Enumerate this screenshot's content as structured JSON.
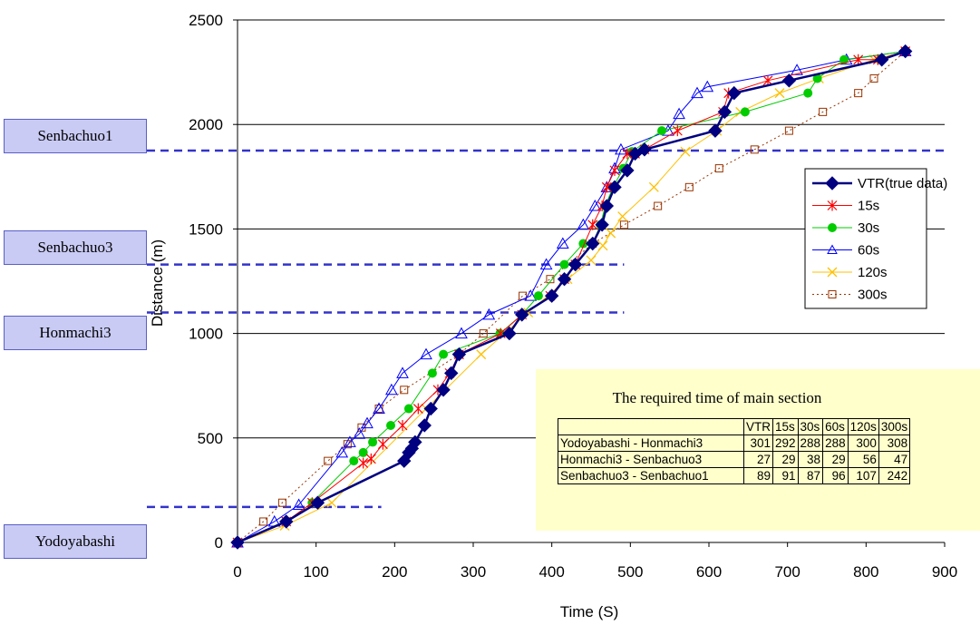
{
  "chart_data": {
    "type": "line",
    "title": "",
    "xlabel": "Time (S)",
    "ylabel": "Distance (m)",
    "xlim": [
      0,
      900
    ],
    "ylim": [
      0,
      2500
    ],
    "xticks": [
      0,
      100,
      200,
      300,
      400,
      500,
      600,
      700,
      800,
      900
    ],
    "yticks": [
      0,
      500,
      1000,
      1500,
      2000,
      2500
    ],
    "grid": "horizontal",
    "legend_position": "right",
    "series": [
      {
        "name": "VTR(true data)",
        "color": "#000080",
        "marker": "diamond",
        "dash": "solid",
        "x": [
          0,
          62,
          102,
          212,
          218,
          222,
          226,
          238,
          246,
          262,
          272,
          282,
          346,
          362,
          400,
          416,
          430,
          452,
          464,
          470,
          480,
          496,
          506,
          518,
          608,
          620,
          632,
          702,
          820,
          850
        ],
        "y": [
          0,
          100,
          190,
          390,
          430,
          450,
          480,
          560,
          640,
          730,
          810,
          900,
          1000,
          1090,
          1180,
          1260,
          1330,
          1430,
          1520,
          1610,
          1700,
          1780,
          1860,
          1880,
          1970,
          2060,
          2150,
          2210,
          2310,
          2350
        ]
      },
      {
        "name": "15s",
        "color": "#ff0000",
        "marker": "star",
        "dash": "solid",
        "x": [
          0,
          62,
          95,
          160,
          170,
          185,
          210,
          230,
          255,
          270,
          282,
          335,
          362,
          398,
          416,
          430,
          452,
          464,
          470,
          480,
          496,
          506,
          518,
          560,
          618,
          625,
          675,
          790,
          815,
          850
        ],
        "y": [
          0,
          100,
          190,
          380,
          400,
          470,
          560,
          640,
          730,
          810,
          900,
          1000,
          1090,
          1180,
          1260,
          1330,
          1520,
          1610,
          1700,
          1780,
          1860,
          1860,
          1880,
          1970,
          2060,
          2150,
          2210,
          2310,
          2310,
          2350
        ]
      },
      {
        "name": "30s",
        "color": "#00cc00",
        "marker": "circle",
        "dash": "solid",
        "x": [
          0,
          62,
          95,
          148,
          160,
          172,
          195,
          218,
          248,
          262,
          334,
          362,
          383,
          416,
          440,
          452,
          462,
          468,
          478,
          491,
          502,
          540,
          646,
          726,
          738,
          772,
          850
        ],
        "y": [
          0,
          100,
          190,
          390,
          430,
          480,
          560,
          640,
          810,
          900,
          1000,
          1090,
          1180,
          1330,
          1430,
          1430,
          1520,
          1610,
          1700,
          1790,
          1870,
          1970,
          2060,
          2150,
          2220,
          2310,
          2350
        ]
      },
      {
        "name": "60s",
        "color": "#0000ff",
        "marker": "triangle",
        "dash": "solid",
        "x": [
          0,
          47,
          78,
          133,
          143,
          155,
          165,
          180,
          196,
          210,
          240,
          285,
          320,
          373,
          393,
          414,
          440,
          455,
          470,
          480,
          488,
          548,
          562,
          585,
          598,
          712,
          775,
          850
        ],
        "y": [
          0,
          100,
          180,
          430,
          480,
          520,
          570,
          640,
          730,
          810,
          900,
          1000,
          1090,
          1180,
          1330,
          1430,
          1520,
          1610,
          1700,
          1790,
          1880,
          1970,
          2050,
          2150,
          2180,
          2260,
          2310,
          2350
        ]
      },
      {
        "name": "120s",
        "color": "#ffc000",
        "marker": "x",
        "dash": "solid",
        "x": [
          0,
          60,
          120,
          240,
          310,
          370,
          420,
          450,
          465,
          475,
          490,
          530,
          570,
          610,
          640,
          690,
          740,
          810,
          850
        ],
        "y": [
          0,
          80,
          190,
          640,
          900,
          1100,
          1260,
          1350,
          1420,
          1480,
          1560,
          1700,
          1870,
          1970,
          2060,
          2150,
          2220,
          2310,
          2350
        ]
      },
      {
        "name": "300s",
        "color": "#993300",
        "marker": "square",
        "dash": "dot",
        "x": [
          0,
          33,
          57,
          115,
          140,
          158,
          180,
          212,
          282,
          313,
          363,
          398,
          452,
          492,
          535,
          575,
          613,
          658,
          702,
          745,
          790,
          810,
          850
        ],
        "y": [
          0,
          100,
          190,
          390,
          470,
          550,
          640,
          730,
          900,
          1000,
          1180,
          1260,
          1430,
          1520,
          1610,
          1700,
          1790,
          1880,
          1970,
          2060,
          2150,
          2220,
          2350
        ]
      }
    ],
    "station_lines": [
      {
        "name": "Senbachuo1",
        "y": 1875,
        "x_end": 902
      },
      {
        "name": "Senbachuo3",
        "y": 1330,
        "x_end": 492
      },
      {
        "name": "Honmachi3",
        "y": 1100,
        "x_end": 492
      },
      {
        "name": "Yodoyabashi",
        "y": 170,
        "x_end": 183
      }
    ]
  },
  "stations": {
    "senbachuo1": "Senbachuo1",
    "senbachuo3": "Senbachuo3",
    "honmachi3": "Honmachi3",
    "yodoyabashi": "Yodoyabashi"
  },
  "required_time_table": {
    "title": "The required time of main section",
    "headers": [
      "",
      "VTR",
      "15s",
      "30s",
      "60s",
      "120s",
      "300s"
    ],
    "rows": [
      {
        "section": "Yodoyabashi - Honmachi3",
        "values": [
          "301",
          "292",
          "288",
          "288",
          "300",
          "308"
        ]
      },
      {
        "section": "Honmachi3 - Senbachuo3",
        "values": [
          "27",
          "29",
          "38",
          "29",
          "56",
          "47"
        ]
      },
      {
        "section": "Senbachuo3 - Senbachuo1",
        "values": [
          "89",
          "91",
          "87",
          "96",
          "107",
          "242"
        ]
      }
    ]
  }
}
